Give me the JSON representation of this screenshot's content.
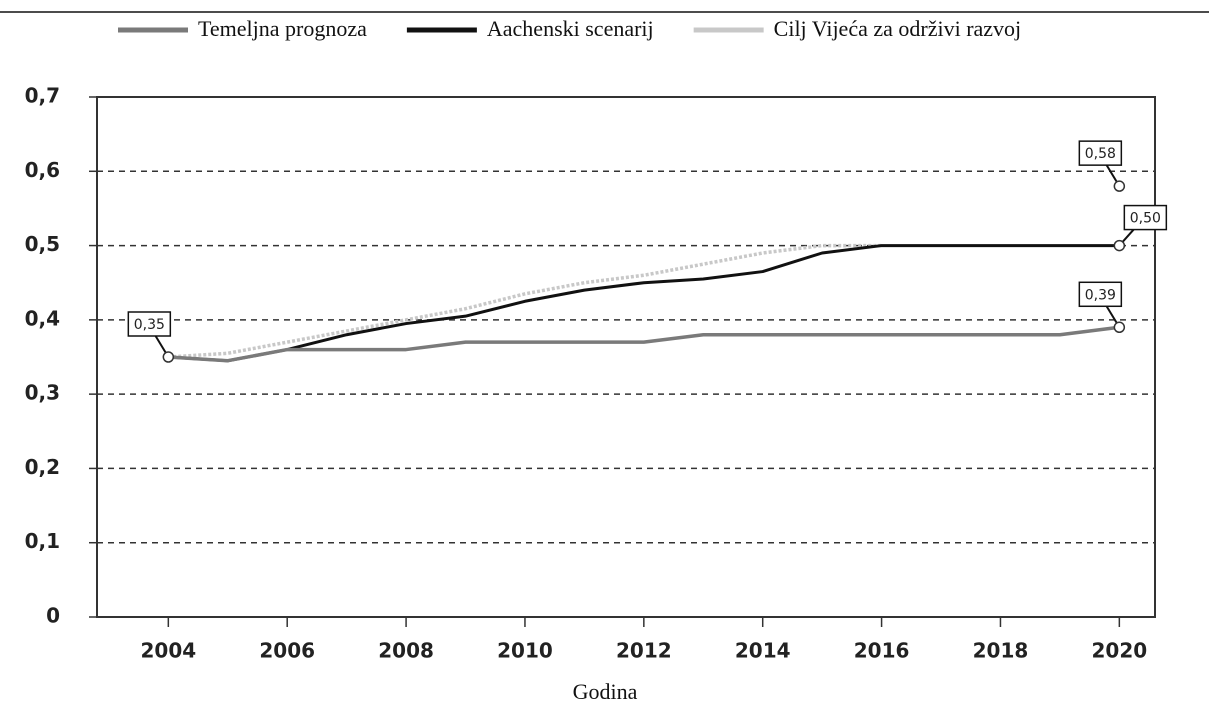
{
  "chart_data": {
    "type": "line",
    "xlabel": "Godina",
    "x": [
      2004,
      2005,
      2006,
      2007,
      2008,
      2009,
      2010,
      2011,
      2012,
      2013,
      2014,
      2015,
      2016,
      2017,
      2018,
      2019,
      2020
    ],
    "series": [
      {
        "name": "Temeljna prognoza",
        "color": "#7a7a7a",
        "values": [
          0.35,
          0.345,
          0.36,
          0.36,
          0.36,
          0.37,
          0.37,
          0.37,
          0.37,
          0.38,
          0.38,
          0.38,
          0.38,
          0.38,
          0.38,
          0.38,
          0.39
        ],
        "value_labels": [
          "0,35",
          null,
          null,
          null,
          null,
          null,
          null,
          null,
          null,
          null,
          null,
          null,
          null,
          null,
          null,
          null,
          "0,39"
        ]
      },
      {
        "name": "Aachenski scenarij",
        "color": "#111111",
        "values": [
          0.35,
          0.345,
          0.36,
          0.38,
          0.395,
          0.405,
          0.425,
          0.44,
          0.45,
          0.455,
          0.465,
          0.49,
          0.5,
          0.5,
          0.5,
          0.5,
          0.5
        ],
        "value_labels": [
          null,
          null,
          null,
          null,
          null,
          null,
          null,
          null,
          null,
          null,
          null,
          null,
          null,
          null,
          null,
          null,
          "0,50"
        ]
      },
      {
        "name": "Cilj Vijeća za održivi razvoj",
        "color": "#c8c8c8",
        "values": [
          0.35,
          0.355,
          0.37,
          0.385,
          0.4,
          0.415,
          0.435,
          0.45,
          0.46,
          0.475,
          0.49,
          0.5,
          0.5,
          null,
          null,
          null,
          0.58
        ],
        "value_labels": [
          null,
          null,
          null,
          null,
          null,
          null,
          null,
          null,
          null,
          null,
          null,
          null,
          null,
          null,
          null,
          null,
          "0,58"
        ]
      }
    ],
    "xlim": [
      2002.8,
      2020.6
    ],
    "xticks": [
      2004,
      2006,
      2008,
      2010,
      2012,
      2014,
      2016,
      2018,
      2020
    ],
    "ylim": [
      0,
      0.7
    ],
    "yticks": [
      0,
      {
        "value": 0.1,
        "label": "0,1"
      },
      {
        "value": 0.2,
        "label": "0,2"
      },
      {
        "value": 0.3,
        "label": "0,3"
      },
      {
        "value": 0.4,
        "label": "0,4"
      },
      {
        "value": 0.5,
        "label": "0,5"
      },
      {
        "value": 0.6,
        "label": "0,6"
      },
      {
        "value": 0.7,
        "label": "0,7"
      }
    ],
    "grid": true,
    "legend": "top"
  }
}
